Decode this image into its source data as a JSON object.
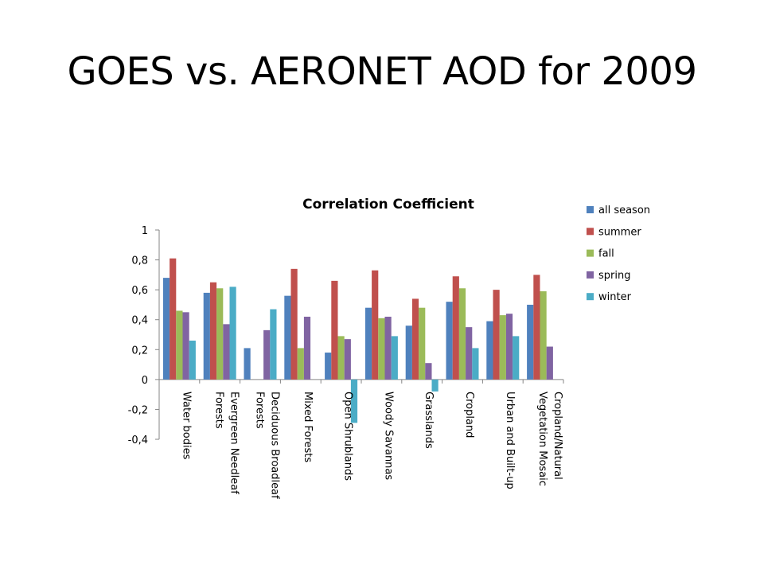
{
  "slide": {
    "title": "GOES vs. AERONET AOD for 2009"
  },
  "chart_data": {
    "type": "bar",
    "title": "Correlation Coefficient",
    "xlabel": "",
    "ylabel": "",
    "ylim": [
      -0.4,
      1
    ],
    "yticks": [
      -0.4,
      -0.2,
      0,
      0.2,
      0.4,
      0.6,
      0.8,
      1
    ],
    "ytick_labels": [
      "-0,4",
      "-0,2",
      "0",
      "0,2",
      "0,4",
      "0,6",
      "0,8",
      "1"
    ],
    "grid": false,
    "legend_position": "top-right",
    "categories": [
      [
        "Water bodies"
      ],
      [
        "Evergreen Needleaf",
        "Forests"
      ],
      [
        "Deciduous Broadleaf",
        "Forests"
      ],
      [
        "Mixed Forests"
      ],
      [
        "Open Shrublands"
      ],
      [
        "Woody Savannas"
      ],
      [
        "Grasslands"
      ],
      [
        "Cropland"
      ],
      [
        "Urban and Built-up"
      ],
      [
        "Cropland/Natural",
        "Vegetation Mosaic"
      ]
    ],
    "series": [
      {
        "name": "all season",
        "color": "#4F81BD",
        "values": [
          0.68,
          0.58,
          0.21,
          0.56,
          0.18,
          0.48,
          0.36,
          0.52,
          0.39,
          0.5
        ]
      },
      {
        "name": "summer",
        "color": "#C0504D",
        "values": [
          0.81,
          0.65,
          null,
          0.74,
          0.66,
          0.73,
          0.54,
          0.69,
          0.6,
          0.7
        ]
      },
      {
        "name": "fall",
        "color": "#9BBB59",
        "values": [
          0.46,
          0.61,
          null,
          0.21,
          0.29,
          0.41,
          0.48,
          0.61,
          0.43,
          0.59
        ]
      },
      {
        "name": "spring",
        "color": "#8064A2",
        "values": [
          0.45,
          0.37,
          0.33,
          0.42,
          0.27,
          0.42,
          0.11,
          0.35,
          0.44,
          0.22
        ]
      },
      {
        "name": "winter",
        "color": "#4BACC6",
        "values": [
          0.26,
          0.62,
          0.47,
          null,
          -0.29,
          0.29,
          -0.08,
          0.21,
          0.29,
          null
        ]
      }
    ]
  }
}
